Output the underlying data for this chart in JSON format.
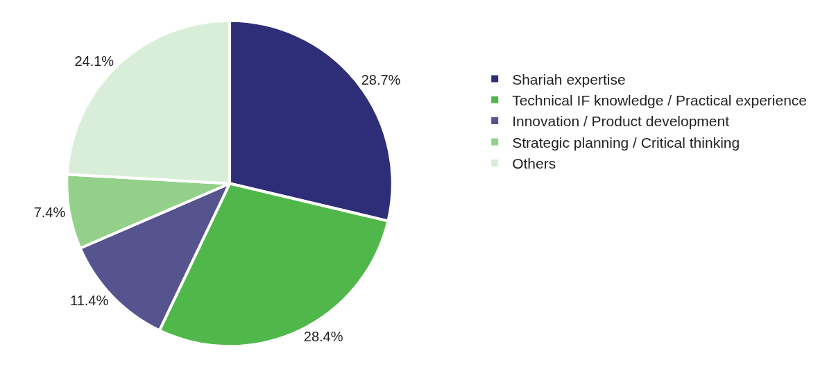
{
  "chart_data": {
    "type": "pie",
    "categories": [
      "Shariah expertise",
      "Technical IF knowledge / Practical experience",
      "Innovation / Product development",
      "Strategic planning / Critical thinking",
      "Others"
    ],
    "values": [
      28.7,
      28.4,
      11.4,
      7.4,
      24.1
    ],
    "colors": [
      "#2e2e78",
      "#50b84a",
      "#55548f",
      "#93d08a",
      "#d9eed8"
    ],
    "value_labels": [
      "28.7%",
      "28.4%",
      "11.4%",
      "7.4%",
      "24.1%"
    ],
    "legend": "right"
  }
}
